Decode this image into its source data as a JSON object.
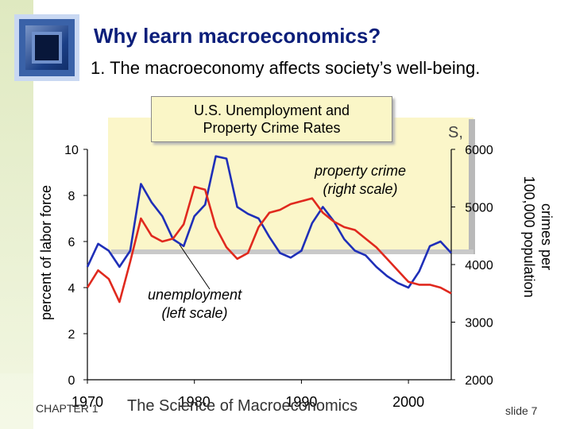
{
  "slide": {
    "title": "Why learn macroeconomics?",
    "subtitle": "1. The macroeconomy affects society’s well-being.",
    "footer_chapter": "CHAPTER 1",
    "footer_book": "The Science of Macroeconomics",
    "slide_number": "slide 7",
    "stray_text": "S,"
  },
  "colors": {
    "title": "#0b1e7a",
    "unemployment": "#1f2fb8",
    "crime": "#e0291e",
    "callout_fill": "#faf6c7",
    "highlight_fill": "#fbf6c9"
  },
  "icons": {
    "logo": "window-logo-icon"
  },
  "chart_data": {
    "type": "line",
    "title": "U.S. Unemployment and Property Crime Rates",
    "title_lines": [
      "U.S. Unemployment and",
      "Property Crime Rates"
    ],
    "ylabel_left": "percent of labor force",
    "ylabel_right_lines": [
      "crimes per",
      "100,000 population"
    ],
    "x_ticks": [
      "1970",
      "1980",
      "1990",
      "2000"
    ],
    "y_left_ticks": [
      "0",
      "2",
      "4",
      "6",
      "8",
      "10"
    ],
    "y_right_ticks": [
      "2000",
      "3000",
      "4000",
      "5000",
      "6000"
    ],
    "xlim": [
      1970,
      2004
    ],
    "ylim_left": [
      0,
      10
    ],
    "ylim_right": [
      2000,
      6000
    ],
    "annotations": {
      "crime_lines": [
        "property crime",
        "(right scale)"
      ],
      "unemployment_lines": [
        "unemployment",
        "(left scale)"
      ]
    },
    "series": [
      {
        "name": "unemployment",
        "axis": "left",
        "color": "#1f2fb8",
        "x": [
          1970,
          1971,
          1972,
          1973,
          1974,
          1975,
          1976,
          1977,
          1978,
          1979,
          1980,
          1981,
          1982,
          1983,
          1984,
          1985,
          1986,
          1987,
          1988,
          1989,
          1990,
          1991,
          1992,
          1993,
          1994,
          1995,
          1996,
          1997,
          1998,
          1999,
          2000,
          2001,
          2002,
          2003,
          2004
        ],
        "y": [
          4.9,
          5.9,
          5.6,
          4.9,
          5.6,
          8.5,
          7.7,
          7.1,
          6.1,
          5.8,
          7.1,
          7.6,
          9.7,
          9.6,
          7.5,
          7.2,
          7.0,
          6.2,
          5.5,
          5.3,
          5.6,
          6.8,
          7.5,
          6.9,
          6.1,
          5.6,
          5.4,
          4.9,
          4.5,
          4.2,
          4.0,
          4.7,
          5.8,
          6.0,
          5.5
        ]
      },
      {
        "name": "property crime",
        "axis": "right",
        "color": "#e0291e",
        "x": [
          1970,
          1971,
          1972,
          1973,
          1974,
          1975,
          1976,
          1977,
          1978,
          1979,
          1980,
          1981,
          1982,
          1983,
          1984,
          1985,
          1986,
          1987,
          1988,
          1989,
          1990,
          1991,
          1992,
          1993,
          1994,
          1995,
          1996,
          1997,
          1998,
          1999,
          2000,
          2001,
          2002,
          2003,
          2004
        ],
        "y": [
          3600,
          3900,
          3750,
          3350,
          4050,
          4800,
          4500,
          4400,
          4450,
          4700,
          5350,
          5300,
          4650,
          4300,
          4100,
          4200,
          4650,
          4900,
          4950,
          5050,
          5100,
          5150,
          4900,
          4750,
          4650,
          4600,
          4450,
          4300,
          4100,
          3900,
          3700,
          3650,
          3650,
          3600,
          3500
        ]
      }
    ]
  }
}
